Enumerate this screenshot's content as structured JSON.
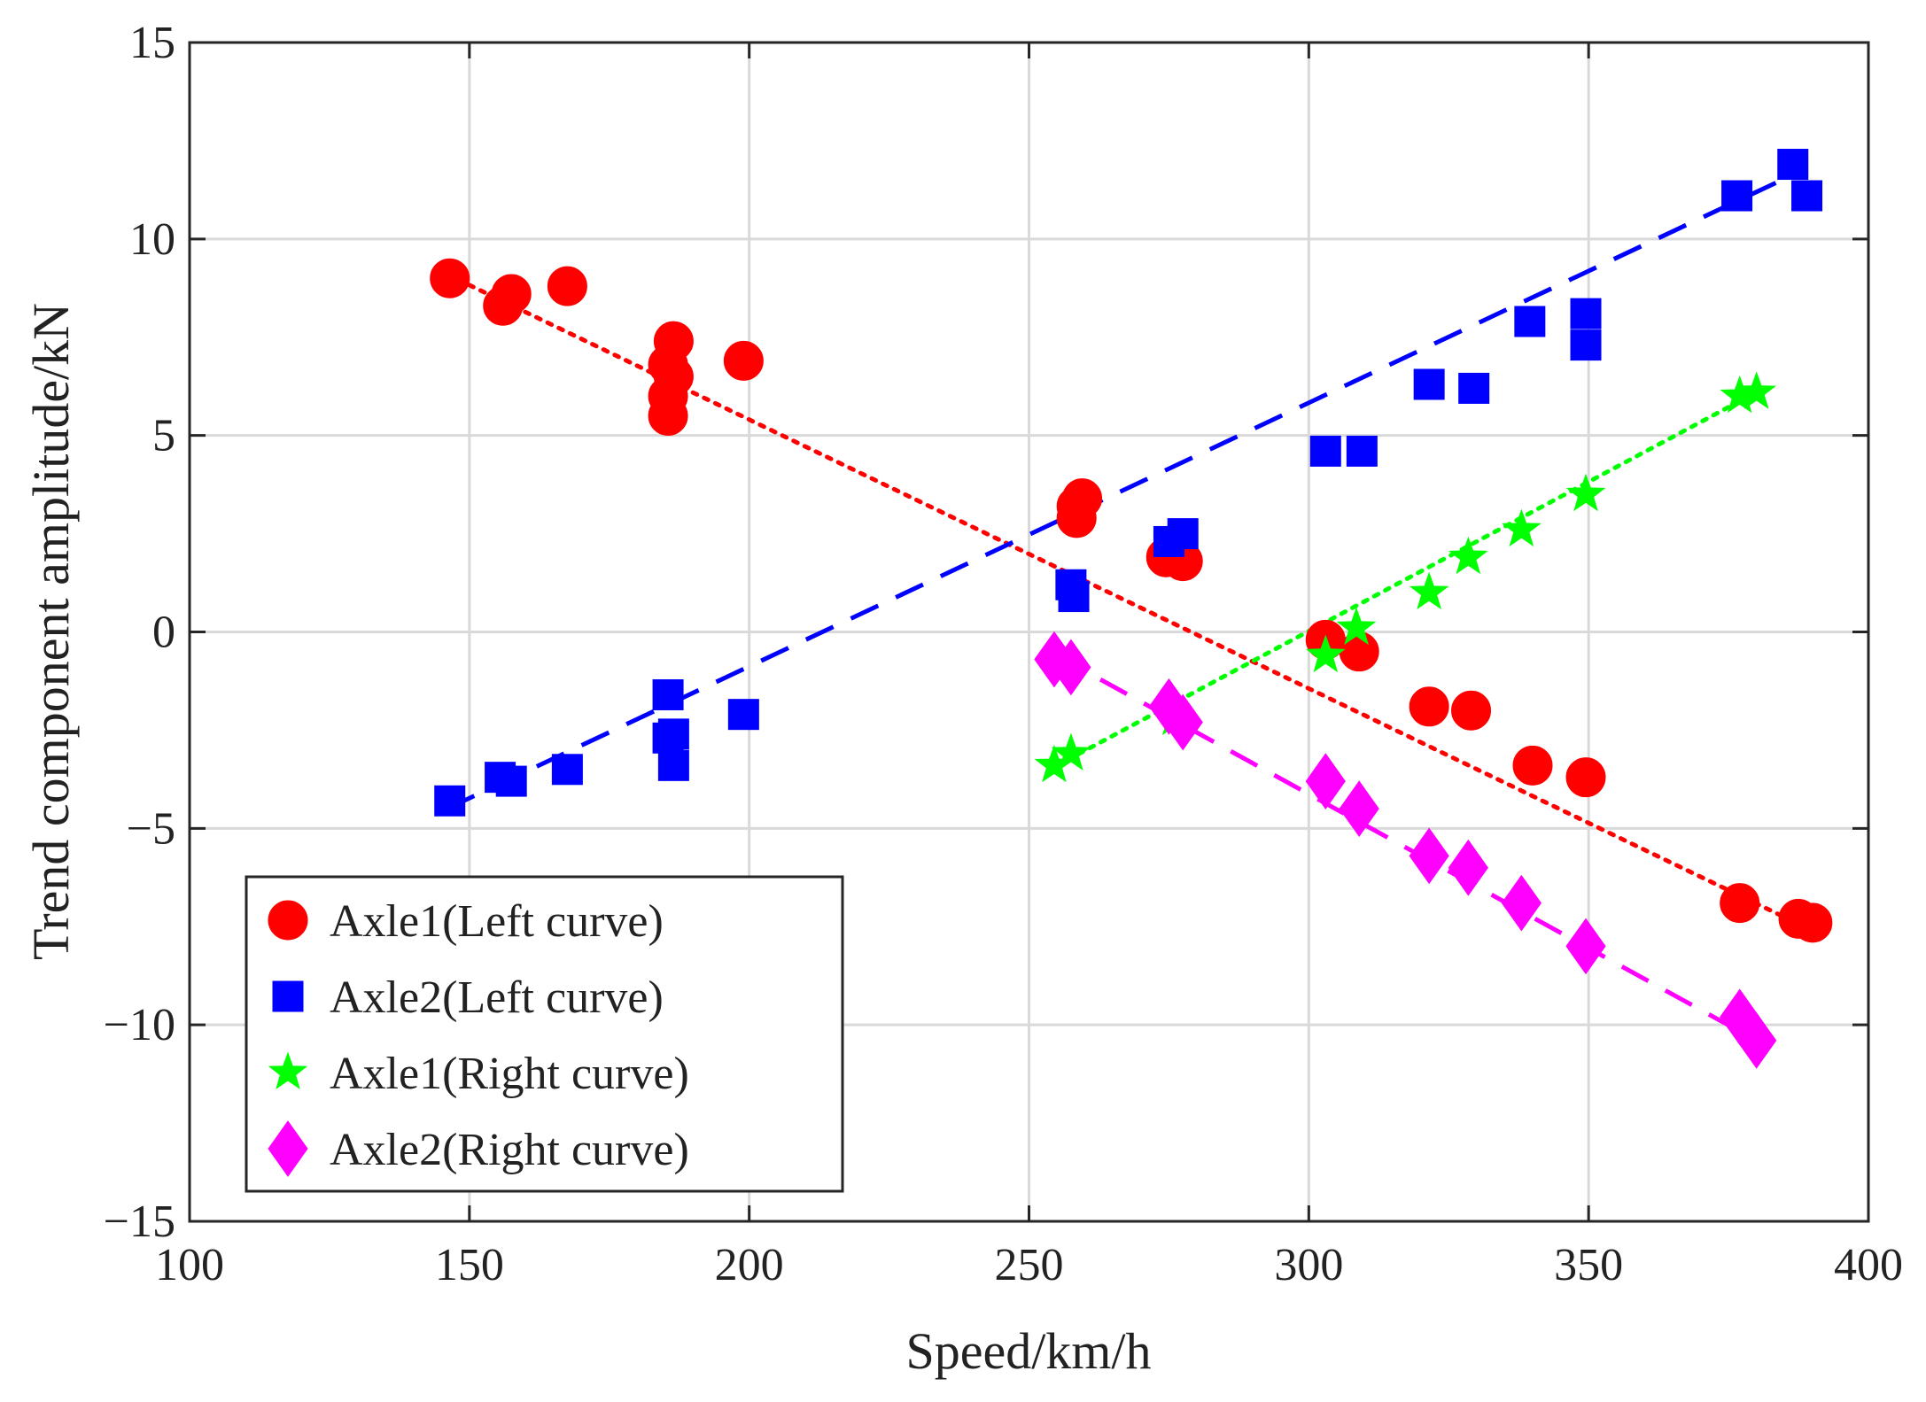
{
  "chart_data": {
    "type": "scatter",
    "title": "",
    "xlabel": "Speed/km/h",
    "ylabel": "Trend component amplitude/kN",
    "xlim": [
      100,
      400
    ],
    "ylim": [
      -15,
      15
    ],
    "xticks": [
      100,
      150,
      200,
      250,
      300,
      350,
      400
    ],
    "yticks": [
      -15,
      -10,
      -5,
      0,
      5,
      10,
      15
    ],
    "xtick_labels": [
      "100",
      "150",
      "200",
      "250",
      "300",
      "350",
      "400"
    ],
    "ytick_labels": [
      "−15",
      "−10",
      "−5",
      "0",
      "5",
      "10",
      "15"
    ],
    "grid": true,
    "legend_position": "bottom-left",
    "series": [
      {
        "name": "Axle1(Left curve)",
        "marker": "circle",
        "color": "#ff0000",
        "line_style": "dotted",
        "x": [
          146.5,
          156,
          157.5,
          167.5,
          186.5,
          185.5,
          186.5,
          185.5,
          185.5,
          199,
          258.5,
          259.5,
          258.5,
          274.5,
          277.5,
          303,
          309,
          321.5,
          329,
          340,
          349.5,
          377,
          387.5,
          390
        ],
        "y": [
          9.0,
          8.3,
          8.6,
          8.8,
          7.4,
          6.8,
          6.5,
          6.0,
          5.5,
          6.9,
          3.2,
          3.4,
          2.9,
          1.9,
          1.8,
          -0.2,
          -0.5,
          -1.9,
          -2.0,
          -3.4,
          -3.7,
          -6.9,
          -7.3,
          -7.4
        ],
        "fit": [
          [
            146,
            9.1
          ],
          [
            390,
            -7.6
          ]
        ]
      },
      {
        "name": "Axle2(Left curve)",
        "marker": "square",
        "color": "#0000ff",
        "line_style": "dashed",
        "x": [
          146.5,
          155.5,
          157.5,
          167.5,
          185.5,
          185.5,
          186.5,
          186.5,
          199,
          257.5,
          258,
          275,
          277.5,
          303,
          309.5,
          321.5,
          329.5,
          339.5,
          349.5,
          349.5,
          376.5,
          386.5,
          389
        ],
        "y": [
          -4.3,
          -3.7,
          -3.8,
          -3.5,
          -1.6,
          -2.7,
          -2.6,
          -3.4,
          -2.1,
          1.2,
          0.9,
          2.3,
          2.5,
          4.6,
          4.6,
          6.3,
          6.2,
          7.9,
          8.1,
          7.3,
          11.1,
          11.9,
          11.1
        ],
        "fit": [
          [
            146,
            -4.5
          ],
          [
            386,
            11.6
          ]
        ]
      },
      {
        "name": "Axle1(Right curve)",
        "marker": "star",
        "color": "#00ff00",
        "line_style": "dotted",
        "x": [
          254.5,
          257.5,
          276,
          303,
          308.5,
          321.5,
          328.5,
          338,
          349.5,
          377,
          380
        ],
        "y": [
          -3.4,
          -3.1,
          -2.2,
          -0.6,
          0.1,
          1.0,
          1.9,
          2.6,
          3.5,
          6.0,
          6.1
        ],
        "fit": [
          [
            255,
            -3.4
          ],
          [
            380,
            6.1
          ]
        ]
      },
      {
        "name": "Axle2(Right curve)",
        "marker": "diamond",
        "color": "#ff00ff",
        "line_style": "dashed",
        "x": [
          254.5,
          257.5,
          275,
          277.5,
          303,
          309,
          321.5,
          328.5,
          338,
          349.5,
          377,
          380
        ],
        "y": [
          -0.7,
          -0.9,
          -1.9,
          -2.3,
          -3.8,
          -4.5,
          -5.7,
          -6.0,
          -6.9,
          -8.0,
          -9.8,
          -10.4
        ],
        "fit": [
          [
            255,
            -0.6
          ],
          [
            380,
            -10.4
          ]
        ]
      }
    ]
  }
}
